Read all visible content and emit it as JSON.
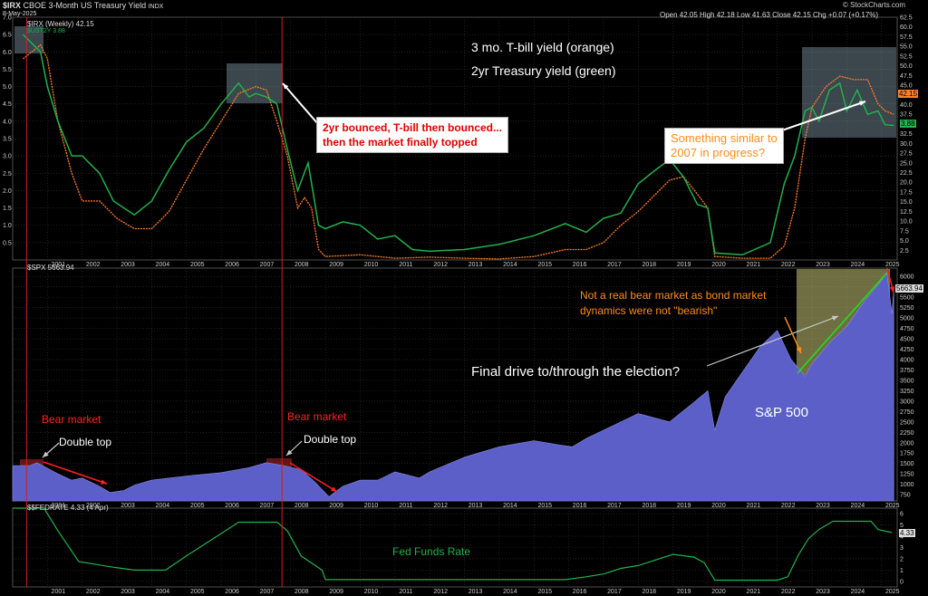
{
  "header": {
    "symbol": "$IRX",
    "name": "CBOE 3-Month US Treasury Yield",
    "exchange": "INDX",
    "date": "8-May-2025",
    "ohlc": "Open 42.05  High 42.18  Low 41.63  Close 42.15  Chg +0.07 (+0.17%)",
    "credit": "© StockCharts.com"
  },
  "panel_labels": {
    "top": "$IRX (Weekly) 42.15",
    "top_sub": "$UST2Y 3.88",
    "mid": "$SPX 5663.94",
    "bottom": "$$FEDRATE 4.33 (4 Apr)"
  },
  "price_tags": {
    "irx": "42.15",
    "ust2y": "3.88",
    "spx": "5663.94",
    "fed": "4.33"
  },
  "annotations": {
    "title1": "3 mo. T-bill yield (orange)",
    "title2": "2yr Treasury yield (green)",
    "box_left_line1": "2yr bounced, T-bill then bounced...",
    "box_left_line2": "then the market finally topped",
    "box_right_line1": "Something similar to",
    "box_right_line2": "2007 in progress?",
    "bear1": "Bear market",
    "bear2": "Bear market",
    "dtop1": "Double top",
    "dtop2": "Double top",
    "not_bear_line1": "Not a real bear market as bond market",
    "not_bear_line2": "dynamics were not \"bearish\"",
    "final_drive": "Final drive to/through the election?",
    "spx_label": "S&P 500",
    "fed_label": "Fed Funds Rate"
  },
  "colors": {
    "orange": "#ff7f2a",
    "green": "#22b14c",
    "spx_fill": "#5b5fc7",
    "red": "#ff2020",
    "annot_orange": "#ff8c1a"
  },
  "chart_data": [
    {
      "type": "line",
      "title": "$IRX CBOE 3-Month US Treasury Yield",
      "ylim": [
        0,
        7
      ],
      "right_axis": [
        0,
        62.5
      ],
      "x_ticks": [
        "2001",
        "2002",
        "2003",
        "2004",
        "2005",
        "2006",
        "2007",
        "2008",
        "2009",
        "2010",
        "2011",
        "2012",
        "2013",
        "2014",
        "2015",
        "2016",
        "2017",
        "2018",
        "2019",
        "2020",
        "2021",
        "2022",
        "2023",
        "2024",
        "2025"
      ],
      "left_ticks": [
        "0.5",
        "1.0",
        "1.5",
        "2.0",
        "2.5",
        "3.0",
        "3.5",
        "4.0",
        "4.5",
        "5.0",
        "5.5",
        "6.0",
        "6.5",
        "7.0"
      ],
      "right_ticks": [
        "2.5",
        "5.0",
        "7.5",
        "10.0",
        "12.5",
        "15.0",
        "17.5",
        "20.0",
        "22.5",
        "25.0",
        "27.5",
        "30.0",
        "32.5",
        "35.0",
        "37.5",
        "40.0",
        "42.5",
        "45.0",
        "47.5",
        "50.0",
        "52.5",
        "55.0",
        "57.5",
        "60.0",
        "62.5"
      ],
      "series": [
        {
          "name": "$IRX",
          "color": "#ff7f2a",
          "x": [
            2000.3,
            2000.8,
            2001.0,
            2001.3,
            2001.7,
            2002.0,
            2002.5,
            2003.0,
            2003.5,
            2004.0,
            2004.5,
            2005.0,
            2005.5,
            2006.0,
            2006.5,
            2007.0,
            2007.3,
            2007.6,
            2007.9,
            2008.2,
            2008.4,
            2008.6,
            2008.8,
            2009.0,
            2010.0,
            2011.0,
            2012.0,
            2013.0,
            2014.0,
            2015.0,
            2015.9,
            2016.5,
            2017.0,
            2017.5,
            2018.0,
            2018.5,
            2018.9,
            2019.3,
            2019.7,
            2020.0,
            2020.2,
            2021.0,
            2021.8,
            2022.2,
            2022.5,
            2022.8,
            2023.0,
            2023.4,
            2023.8,
            2024.2,
            2024.6,
            2024.9,
            2025.1,
            2025.35
          ],
          "y": [
            5.8,
            6.2,
            5.8,
            4.0,
            2.5,
            1.7,
            1.7,
            1.2,
            0.9,
            0.9,
            1.4,
            2.3,
            3.2,
            4.0,
            4.8,
            5.0,
            4.9,
            4.0,
            3.0,
            1.5,
            1.8,
            1.5,
            0.3,
            0.1,
            0.15,
            0.05,
            0.08,
            0.05,
            0.03,
            0.1,
            0.3,
            0.3,
            0.5,
            1.0,
            1.4,
            1.9,
            2.3,
            2.4,
            1.9,
            1.5,
            0.1,
            0.05,
            0.05,
            0.4,
            1.5,
            3.5,
            4.4,
            5.0,
            5.3,
            5.2,
            5.2,
            4.5,
            4.3,
            4.2
          ]
        },
        {
          "name": "$UST2Y",
          "color": "#22b14c",
          "x": [
            2000.3,
            2000.8,
            2001.0,
            2001.3,
            2001.7,
            2002.0,
            2002.5,
            2002.9,
            2003.5,
            2004.0,
            2004.5,
            2005.0,
            2005.5,
            2006.0,
            2006.5,
            2006.8,
            2007.0,
            2007.3,
            2007.6,
            2007.9,
            2008.2,
            2008.5,
            2008.8,
            2009.0,
            2009.5,
            2010.0,
            2010.5,
            2011.0,
            2011.5,
            2012.0,
            2013.0,
            2014.0,
            2015.0,
            2015.9,
            2016.5,
            2017.0,
            2017.5,
            2018.0,
            2018.5,
            2018.9,
            2019.3,
            2019.7,
            2020.0,
            2020.2,
            2021.0,
            2021.8,
            2022.2,
            2022.5,
            2022.8,
            2023.0,
            2023.2,
            2023.5,
            2023.8,
            2024.0,
            2024.3,
            2024.6,
            2024.9,
            2025.1,
            2025.35
          ],
          "y": [
            6.5,
            6.0,
            5.0,
            4.0,
            3.0,
            3.0,
            2.5,
            1.7,
            1.3,
            1.7,
            2.6,
            3.4,
            3.8,
            4.5,
            5.1,
            4.7,
            4.8,
            4.7,
            4.5,
            3.2,
            2.0,
            2.8,
            1.0,
            0.9,
            1.1,
            1.0,
            0.6,
            0.7,
            0.3,
            0.25,
            0.3,
            0.45,
            0.7,
            1.05,
            0.8,
            1.2,
            1.35,
            2.2,
            2.6,
            2.9,
            2.4,
            1.6,
            1.5,
            0.2,
            0.15,
            0.5,
            2.2,
            3.0,
            4.3,
            4.4,
            4.0,
            4.9,
            5.1,
            4.3,
            4.9,
            4.2,
            4.3,
            3.9,
            3.88
          ]
        }
      ]
    },
    {
      "type": "area",
      "title": "$SPX",
      "right_ticks": [
        "750",
        "1000",
        "1250",
        "1500",
        "1750",
        "2000",
        "2250",
        "2500",
        "2750",
        "3000",
        "3250",
        "3500",
        "3750",
        "4000",
        "4250",
        "4500",
        "4750",
        "5000",
        "5250",
        "5500",
        "5750",
        "6000"
      ],
      "series": [
        {
          "name": "$SPX",
          "color": "#5b5fc7",
          "x": [
            2000.0,
            2000.5,
            2000.7,
            2001.3,
            2001.7,
            2002.0,
            2002.5,
            2002.8,
            2003.2,
            2003.5,
            2004.0,
            2005.0,
            2006.0,
            2006.8,
            2007.3,
            2007.8,
            2008.3,
            2008.7,
            2009.1,
            2009.5,
            2010.0,
            2010.5,
            2011.0,
            2011.7,
            2012.0,
            2013.0,
            2014.0,
            2015.0,
            2015.7,
            2016.1,
            2016.5,
            2017.0,
            2018.0,
            2018.9,
            2019.5,
            2020.0,
            2020.2,
            2020.5,
            2021.0,
            2021.5,
            2022.0,
            2022.4,
            2022.8,
            2023.0,
            2023.5,
            2024.0,
            2024.5,
            2025.0,
            2025.15,
            2025.3,
            2025.35
          ],
          "y": [
            1450,
            1450,
            1520,
            1250,
            1100,
            1150,
            950,
            800,
            850,
            980,
            1100,
            1200,
            1280,
            1400,
            1520,
            1450,
            1350,
            1050,
            700,
            950,
            1100,
            1100,
            1300,
            1150,
            1300,
            1650,
            1900,
            2050,
            1950,
            1900,
            2100,
            2300,
            2700,
            2500,
            2900,
            3250,
            2300,
            3100,
            3700,
            4300,
            4700,
            4000,
            3600,
            3900,
            4400,
            4800,
            5400,
            5900,
            6100,
            5100,
            5663.94
          ]
        }
      ]
    },
    {
      "type": "line",
      "title": "$$FEDRATE",
      "ylim": [
        0,
        6.5
      ],
      "right_ticks": [
        "0",
        "1",
        "2",
        "3",
        "4",
        "5",
        "6"
      ],
      "series": [
        {
          "name": "$$FEDRATE",
          "color": "#22b14c",
          "x": [
            2000.0,
            2000.9,
            2001.3,
            2001.9,
            2002.9,
            2003.5,
            2004.4,
            2005.0,
            2005.5,
            2006.0,
            2006.5,
            2007.6,
            2007.9,
            2008.3,
            2008.9,
            2009.0,
            2015.9,
            2016.5,
            2017.0,
            2017.5,
            2018.0,
            2018.5,
            2019.0,
            2019.6,
            2019.9,
            2020.2,
            2022.0,
            2022.3,
            2022.6,
            2022.9,
            2023.2,
            2023.6,
            2024.7,
            2024.9,
            2025.3
          ],
          "y": [
            6.5,
            6.5,
            4.5,
            1.75,
            1.25,
            1.0,
            1.0,
            2.25,
            3.25,
            4.25,
            5.25,
            5.25,
            4.5,
            2.25,
            1.0,
            0.15,
            0.15,
            0.4,
            0.65,
            1.15,
            1.4,
            1.9,
            2.4,
            2.15,
            1.65,
            0.1,
            0.1,
            0.4,
            2.3,
            3.8,
            4.6,
            5.33,
            5.33,
            4.6,
            4.33
          ]
        }
      ]
    }
  ]
}
